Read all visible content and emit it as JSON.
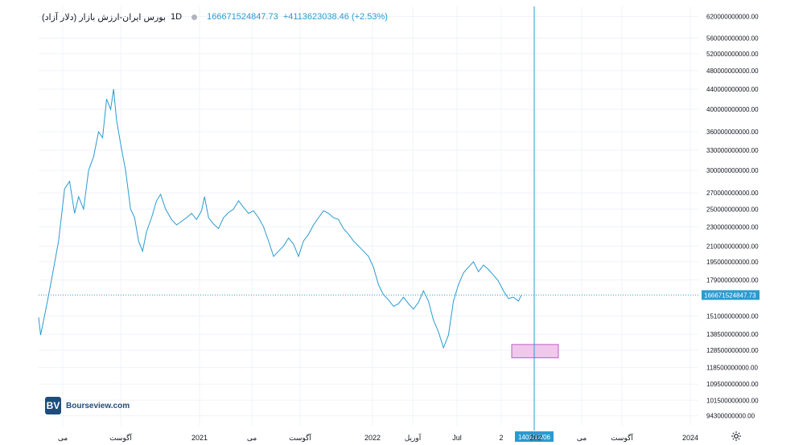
{
  "legend": {
    "symbol": "بورس ایران-ارزش بازار (دلار آزاد)",
    "timeframe": "1D",
    "last_value": "166671524847.73",
    "change": "+4113623038.46 (+2.53%)"
  },
  "logo": {
    "mark": "BV",
    "text": "Bourseview.com"
  },
  "icons": {
    "settings": "gear-icon"
  },
  "colors": {
    "line": "#2a9bd0",
    "crosshair": "#2a9bd0",
    "highlight_fill": "#f0c8ec",
    "highlight_stroke": "#c05cc0"
  },
  "chart_data": {
    "type": "line",
    "title": "",
    "price_scale": "log",
    "ylim": [
      90000000000,
      650000000000
    ],
    "y_ticks": [
      "620000000000.00",
      "560000000000.00",
      "520000000000.00",
      "480000000000.00",
      "440000000000.00",
      "400000000000.00",
      "360000000000.00",
      "330000000000.00",
      "300000000000.00",
      "270000000000.00",
      "250000000000.00",
      "230000000000.00",
      "210000000000.00",
      "195000000000.00",
      "179000000000.00",
      "151000000000.00",
      "138500000000.00",
      "128500000000.00",
      "118500000000.00",
      "109500000000.00",
      "101500000000.00",
      "94300000000.00"
    ],
    "x_ticks": [
      "می",
      "آگوست",
      "2021",
      "می",
      "آگوست",
      "2022",
      "آوریل",
      "Jul",
      "2",
      "202",
      "می",
      "آگوست",
      "2024"
    ],
    "crosshair": {
      "x_label": "1401/12/06",
      "y_label": "166671524847.73"
    },
    "last_price_line": 166671524847.73,
    "highlight_range": [
      124000000000,
      132000000000
    ],
    "series": [
      {
        "points": [
          [
            0,
            150000000000
          ],
          [
            0.2,
            138000000000
          ],
          [
            0.7,
            155000000000
          ],
          [
            1.2,
            175000000000
          ],
          [
            2.0,
            215000000000
          ],
          [
            2.6,
            275000000000
          ],
          [
            3.1,
            285000000000
          ],
          [
            3.6,
            245000000000
          ],
          [
            4.0,
            265000000000
          ],
          [
            4.5,
            250000000000
          ],
          [
            5.0,
            300000000000
          ],
          [
            5.5,
            320000000000
          ],
          [
            6.0,
            360000000000
          ],
          [
            6.4,
            350000000000
          ],
          [
            6.8,
            420000000000
          ],
          [
            7.2,
            400000000000
          ],
          [
            7.5,
            440000000000
          ],
          [
            7.8,
            380000000000
          ],
          [
            8.2,
            340000000000
          ],
          [
            8.7,
            300000000000
          ],
          [
            9.2,
            250000000000
          ],
          [
            9.6,
            240000000000
          ],
          [
            10.0,
            215000000000
          ],
          [
            10.4,
            205000000000
          ],
          [
            10.8,
            225000000000
          ],
          [
            11.3,
            240000000000
          ],
          [
            11.8,
            260000000000
          ],
          [
            12.2,
            268000000000
          ],
          [
            12.7,
            250000000000
          ],
          [
            13.3,
            238000000000
          ],
          [
            13.8,
            232000000000
          ],
          [
            14.3,
            236000000000
          ],
          [
            14.8,
            240000000000
          ],
          [
            15.3,
            245000000000
          ],
          [
            15.8,
            238000000000
          ],
          [
            16.3,
            248000000000
          ],
          [
            16.6,
            265000000000
          ],
          [
            17.0,
            240000000000
          ],
          [
            17.5,
            233000000000
          ],
          [
            18.0,
            228000000000
          ],
          [
            18.5,
            240000000000
          ],
          [
            19.0,
            246000000000
          ],
          [
            19.5,
            250000000000
          ],
          [
            20.0,
            260000000000
          ],
          [
            20.5,
            252000000000
          ],
          [
            21.0,
            245000000000
          ],
          [
            21.5,
            248000000000
          ],
          [
            22.0,
            240000000000
          ],
          [
            22.5,
            230000000000
          ],
          [
            23.0,
            215000000000
          ],
          [
            23.5,
            200000000000
          ],
          [
            24.0,
            205000000000
          ],
          [
            24.5,
            210000000000
          ],
          [
            25.0,
            218000000000
          ],
          [
            25.5,
            212000000000
          ],
          [
            26.0,
            200000000000
          ],
          [
            26.5,
            215000000000
          ],
          [
            27.0,
            222000000000
          ],
          [
            27.5,
            232000000000
          ],
          [
            28.0,
            240000000000
          ],
          [
            28.5,
            248000000000
          ],
          [
            29.0,
            245000000000
          ],
          [
            29.5,
            240000000000
          ],
          [
            30.0,
            238000000000
          ],
          [
            30.5,
            228000000000
          ],
          [
            31.0,
            222000000000
          ],
          [
            31.5,
            215000000000
          ],
          [
            32.0,
            210000000000
          ],
          [
            32.5,
            205000000000
          ],
          [
            33.0,
            200000000000
          ],
          [
            33.5,
            190000000000
          ],
          [
            34.0,
            175000000000
          ],
          [
            34.5,
            167000000000
          ],
          [
            35.0,
            163000000000
          ],
          [
            35.5,
            158000000000
          ],
          [
            36.0,
            160000000000
          ],
          [
            36.5,
            165000000000
          ],
          [
            37.0,
            160000000000
          ],
          [
            37.5,
            156000000000
          ],
          [
            38.0,
            161000000000
          ],
          [
            38.5,
            170000000000
          ],
          [
            39.0,
            162000000000
          ],
          [
            39.5,
            148000000000
          ],
          [
            40.0,
            140000000000
          ],
          [
            40.5,
            130000000000
          ],
          [
            41.0,
            138000000000
          ],
          [
            41.5,
            162000000000
          ],
          [
            42.0,
            175000000000
          ],
          [
            42.5,
            185000000000
          ],
          [
            43.0,
            190000000000
          ],
          [
            43.5,
            195000000000
          ],
          [
            44.0,
            186000000000
          ],
          [
            44.5,
            192000000000
          ],
          [
            45.0,
            188000000000
          ],
          [
            45.5,
            183000000000
          ],
          [
            46.0,
            178000000000
          ],
          [
            46.5,
            170000000000
          ],
          [
            47.0,
            164000000000
          ],
          [
            47.5,
            165000000000
          ],
          [
            48.0,
            162000000000
          ],
          [
            48.3,
            166671524847.73
          ]
        ]
      }
    ]
  }
}
